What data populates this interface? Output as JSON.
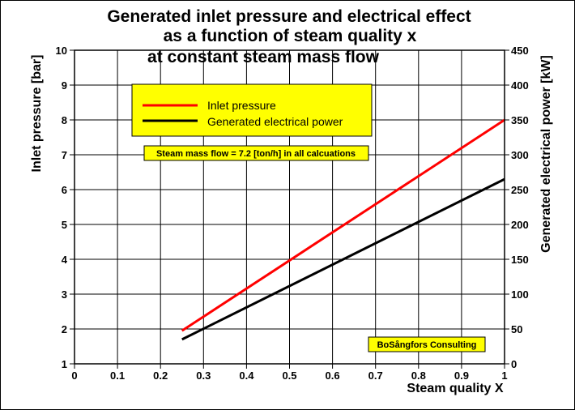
{
  "chart_data": {
    "type": "line",
    "title_lines": [
      "Generated inlet pressure and electrical effect",
      "as a function of steam quality x",
      "at constant steam mass flow"
    ],
    "xlabel": "Steam quality X",
    "ylabel_left": "Inlet pressure [bar]",
    "ylabel_right": "Generated electrical power [kW]",
    "xlim": [
      0,
      1
    ],
    "ylim_left": [
      1,
      10
    ],
    "ylim_right": [
      0,
      450
    ],
    "x_ticks": [
      "0",
      "0.1",
      "0.2",
      "0.3",
      "0.4",
      "0.5",
      "0.6",
      "0.7",
      "0.8",
      "0.9",
      "1"
    ],
    "y_left_ticks": [
      "1",
      "2",
      "3",
      "4",
      "5",
      "6",
      "7",
      "8",
      "9",
      "10"
    ],
    "y_right_ticks": [
      "0",
      "50",
      "100",
      "150",
      "200",
      "250",
      "300",
      "350",
      "400",
      "450"
    ],
    "grid": true,
    "series": [
      {
        "name": "Inlet pressure",
        "axis": "left",
        "color": "#ff0000",
        "x": [
          0.25,
          1.0
        ],
        "y": [
          1.95,
          8.0
        ]
      },
      {
        "name": "Generated electrical power",
        "axis": "right",
        "color": "#000000",
        "x": [
          0.25,
          1.0
        ],
        "y": [
          35,
          265
        ]
      }
    ],
    "legend_placement": "top-left",
    "annotations": [
      "Steam mass flow = 7.2 [ton/h] in all calcuations",
      "BoSångfors Consulting"
    ],
    "colors": {
      "legend_box": "#ffff00",
      "note_box": "#ffff00"
    }
  }
}
